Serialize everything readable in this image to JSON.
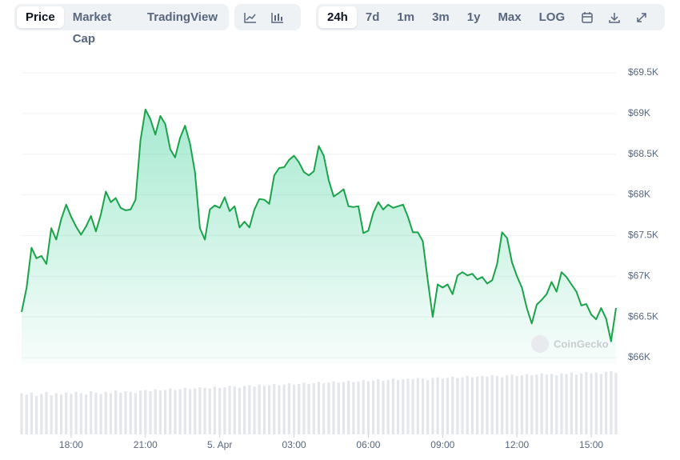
{
  "toolbar": {
    "views": [
      "Price",
      "Market Cap",
      "TradingView"
    ],
    "ranges": [
      "24h",
      "7d",
      "1m",
      "3m",
      "1y",
      "Max",
      "LOG"
    ]
  },
  "chart_data": {
    "type": "area",
    "watermark": "CoinGecko",
    "x": [
      16,
      16.2,
      16.4,
      16.6,
      16.8,
      17,
      17.2,
      17.4,
      17.6,
      17.8,
      18,
      18.2,
      18.4,
      18.6,
      18.8,
      19,
      19.2,
      19.4,
      19.6,
      19.8,
      20,
      20.2,
      20.4,
      20.6,
      20.8,
      21,
      21.2,
      21.4,
      21.6,
      21.8,
      22,
      22.2,
      22.4,
      22.6,
      22.8,
      23,
      23.2,
      23.4,
      23.6,
      23.8,
      24,
      24.2,
      24.4,
      24.6,
      24.8,
      25,
      25.2,
      25.4,
      25.6,
      25.8,
      26,
      26.2,
      26.4,
      26.6,
      26.8,
      27,
      27.2,
      27.4,
      27.6,
      27.8,
      28,
      28.2,
      28.4,
      28.6,
      28.8,
      29,
      29.2,
      29.4,
      29.6,
      29.8,
      30,
      30.2,
      30.4,
      30.6,
      30.8,
      31,
      31.2,
      31.4,
      31.6,
      31.8,
      32,
      32.2,
      32.4,
      32.6,
      32.8,
      33,
      33.2,
      33.4,
      33.6,
      33.8,
      34,
      34.2,
      34.4,
      34.6,
      34.8,
      35,
      35.2,
      35.4,
      35.6,
      35.8,
      36,
      36.2,
      36.4,
      36.6,
      36.8,
      37,
      37.2,
      37.4,
      37.6,
      37.8,
      38,
      38.2,
      38.4,
      38.6,
      38.8,
      39,
      39.2,
      39.4,
      39.6,
      39.8,
      40
    ],
    "series": [
      {
        "color": "#1ba34a",
        "values": [
          66560,
          66855,
          67350,
          67220,
          67250,
          67150,
          67590,
          67450,
          67700,
          67880,
          67730,
          67610,
          67510,
          67610,
          67740,
          67550,
          67760,
          68040,
          67910,
          67960,
          67840,
          67810,
          67820,
          67940,
          68670,
          69050,
          68930,
          68740,
          68970,
          68870,
          68560,
          68460,
          68700,
          68850,
          68630,
          68280,
          67590,
          67450,
          67820,
          67870,
          67840,
          67970,
          67800,
          67860,
          67600,
          67670,
          67600,
          67820,
          67950,
          67940,
          67890,
          68240,
          68330,
          68340,
          68430,
          68480,
          68400,
          68280,
          68240,
          68290,
          68600,
          68480,
          68180,
          67980,
          68020,
          68070,
          67860,
          67850,
          67860,
          67530,
          67560,
          67780,
          67910,
          67820,
          67880,
          67840,
          67860,
          67880,
          67730,
          67540,
          67540,
          67430,
          66950,
          66500,
          66900,
          66860,
          66900,
          66780,
          67010,
          67050,
          67010,
          67030,
          66960,
          66990,
          66910,
          66950,
          67150,
          67540,
          67470,
          67170,
          67000,
          66860,
          66610,
          66420,
          66650,
          66710,
          66780,
          66930,
          66810,
          67050,
          66990,
          66900,
          66810,
          66640,
          66660,
          66530,
          66470,
          66610,
          66480,
          66200,
          66610
        ]
      }
    ],
    "volume": {
      "axis": "y2",
      "color": "#e3e6ea",
      "values": [
        62,
        60,
        63,
        58,
        61,
        64,
        59,
        62,
        60,
        63,
        61,
        64,
        62,
        60,
        65,
        63,
        61,
        64,
        62,
        66,
        63,
        65,
        64,
        62,
        66,
        67,
        65,
        68,
        66,
        67,
        69,
        67,
        68,
        70,
        68,
        69,
        71,
        70,
        69,
        72,
        70,
        71,
        73,
        72,
        70,
        73,
        74,
        72,
        75,
        73,
        74,
        76,
        74,
        75,
        77,
        75,
        76,
        78,
        76,
        77,
        79,
        77,
        78,
        80,
        78,
        79,
        81,
        79,
        80,
        82,
        80,
        81,
        83,
        81,
        82,
        84,
        82,
        83,
        84,
        83,
        85,
        84,
        82,
        85,
        86,
        84,
        85,
        87,
        85,
        86,
        88,
        86,
        87,
        88,
        87,
        89,
        88,
        86,
        89,
        90,
        88,
        89,
        91,
        89,
        90,
        92,
        90,
        91,
        89,
        92,
        91,
        93,
        90,
        92,
        94,
        92,
        93,
        91,
        94,
        95,
        93
      ]
    },
    "xlim": [
      16,
      40
    ],
    "xticks": [
      {
        "value": 18,
        "label": "18:00"
      },
      {
        "value": 21,
        "label": "21:00"
      },
      {
        "value": 24,
        "label": "5. Apr"
      },
      {
        "value": 27,
        "label": "03:00"
      },
      {
        "value": 30,
        "label": "06:00"
      },
      {
        "value": 33,
        "label": "09:00"
      },
      {
        "value": 36,
        "label": "12:00"
      },
      {
        "value": 39,
        "label": "15:00"
      }
    ],
    "ylim": [
      66000,
      69500
    ],
    "yticks": [
      {
        "value": 66000,
        "label": "$66K"
      },
      {
        "value": 66500,
        "label": "$66.5K"
      },
      {
        "value": 67000,
        "label": "$67K"
      },
      {
        "value": 67500,
        "label": "$67.5K"
      },
      {
        "value": 68000,
        "label": "$68K"
      },
      {
        "value": 68500,
        "label": "$68.5K"
      },
      {
        "value": 69000,
        "label": "$69K"
      },
      {
        "value": 69500,
        "label": "$69.5K"
      }
    ],
    "y2lim": [
      0,
      100
    ],
    "grid": true
  }
}
